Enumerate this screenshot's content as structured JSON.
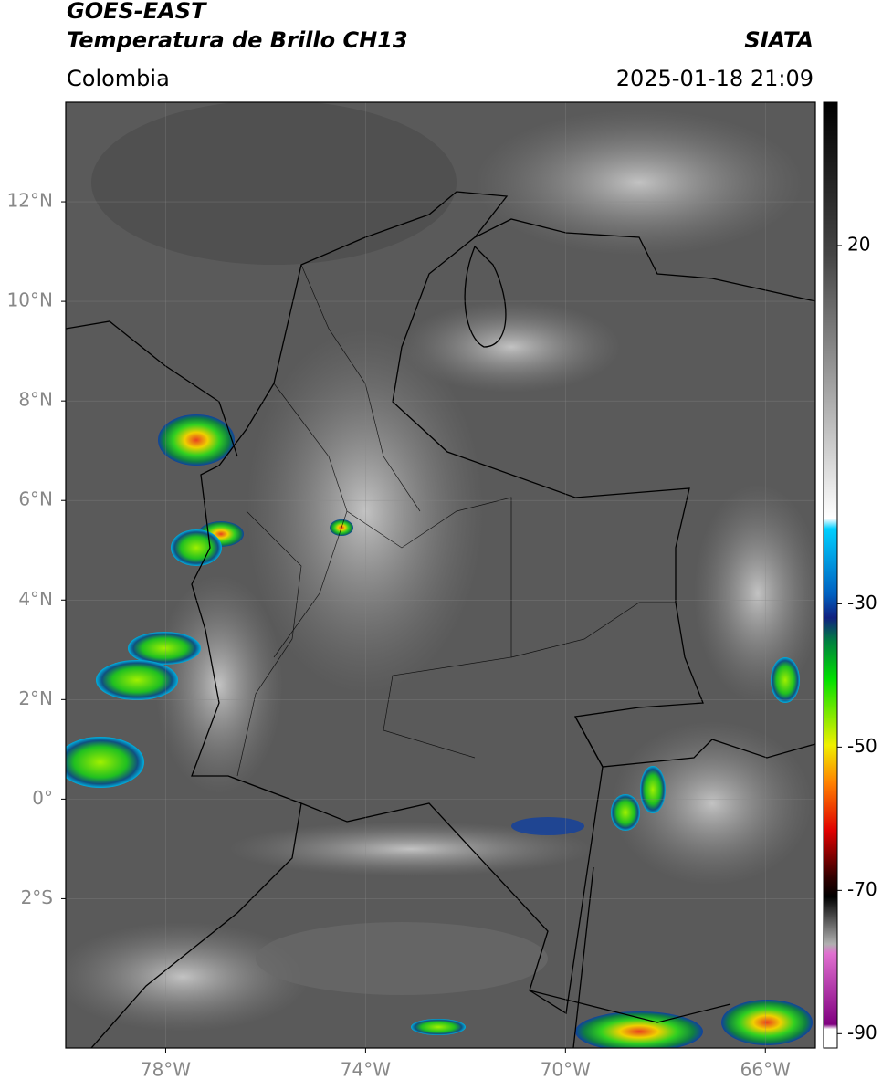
{
  "header": {
    "title": "GOES-EAST",
    "subtitle": "Temperatura de Brillo CH13",
    "region": "Colombia",
    "source": "SIATA",
    "timestamp": "2025-01-18 21:09"
  },
  "map": {
    "lonlim": [
      -80,
      -65
    ],
    "latlim": [
      -5,
      14
    ],
    "lon_ticks": [
      {
        "value": -78,
        "label": "78°W"
      },
      {
        "value": -74,
        "label": "74°W"
      },
      {
        "value": -70,
        "label": "70°W"
      },
      {
        "value": -66,
        "label": "66°W"
      }
    ],
    "lat_ticks": [
      {
        "value": 12,
        "label": "12°N"
      },
      {
        "value": 10,
        "label": "10°N"
      },
      {
        "value": 8,
        "label": "8°N"
      },
      {
        "value": 6,
        "label": "6°N"
      },
      {
        "value": 4,
        "label": "4°N"
      },
      {
        "value": 2,
        "label": "2°N"
      },
      {
        "value": 0,
        "label": "0°"
      },
      {
        "value": -2,
        "label": "2°S"
      }
    ]
  },
  "colorbar": {
    "lim": [
      -92,
      40
    ],
    "ticks": [
      20,
      -30,
      -50,
      -70,
      -90
    ]
  }
}
